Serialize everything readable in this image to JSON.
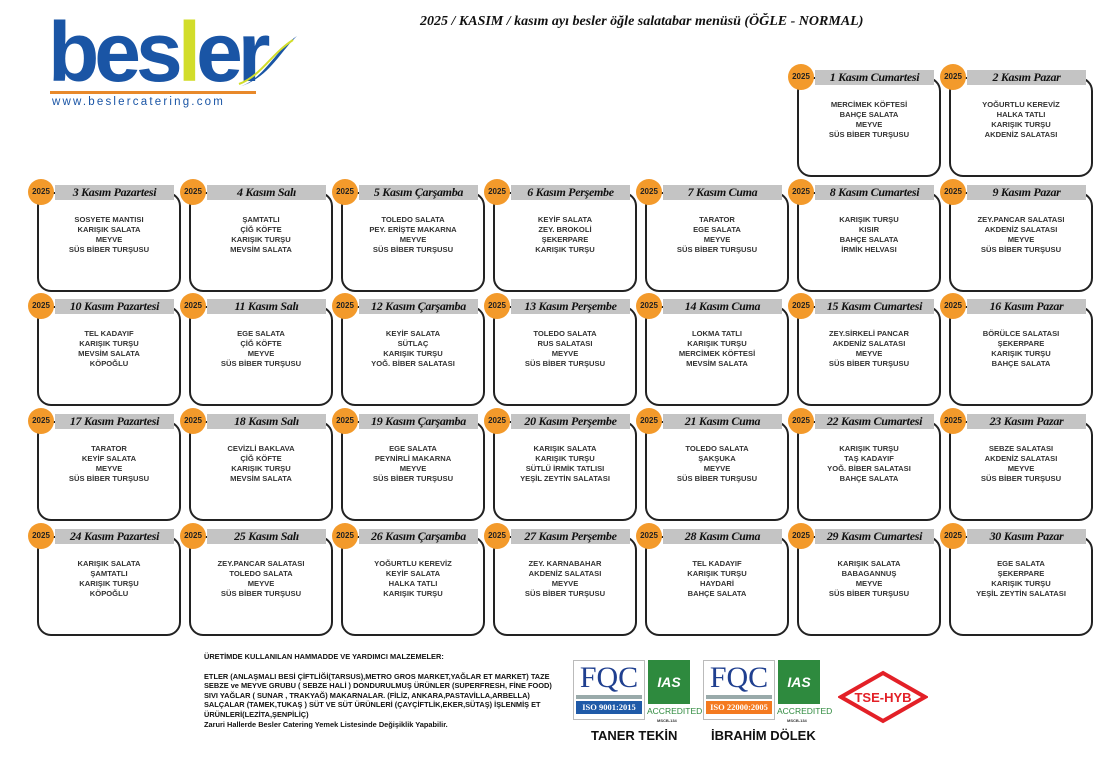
{
  "title": "2025 / KASIM / kasım ayı besler öğle salatabar menüsü (ÖĞLE - NORMAL)",
  "logo": {
    "word": "besler",
    "url": "www.beslercatering.com",
    "colors": {
      "blue": "#1a55a5",
      "lime": "#d2dd2a",
      "orange": "#e8892a"
    }
  },
  "year_badge": "2025",
  "colors": {
    "badge": "#f39a2b",
    "header_bar": "#c4c4c4"
  },
  "days": [
    {
      "title": "1 Kasım Cumartesi",
      "items": [
        "MERCİMEK KÖFTESİ",
        "BAHÇE SALATA",
        "MEYVE",
        "SÜS BİBER TURŞUSU"
      ]
    },
    {
      "title": "2 Kasım Pazar",
      "items": [
        "YOĞURTLU KEREVİZ",
        "HALKA TATLI",
        "KARIŞIK TURŞU",
        "AKDENİZ SALATASI"
      ]
    },
    {
      "title": "3 Kasım Pazartesi",
      "items": [
        "SOSYETE MANTISI",
        "KARIŞIK SALATA",
        "MEYVE",
        "SÜS BİBER TURŞUSU"
      ]
    },
    {
      "title": "4 Kasım Salı",
      "items": [
        "ŞAMTATLI",
        "ÇİĞ KÖFTE",
        "KARIŞIK TURŞU",
        "MEVSİM SALATA"
      ]
    },
    {
      "title": "5 Kasım Çarşamba",
      "items": [
        "TOLEDO SALATA",
        "PEY. ERİŞTE MAKARNA",
        "MEYVE",
        "SÜS BİBER TURŞUSU"
      ]
    },
    {
      "title": "6 Kasım Perşembe",
      "items": [
        "KEYİF SALATA",
        "ZEY. BROKOLİ",
        "ŞEKERPARE",
        "KARIŞIK TURŞU"
      ]
    },
    {
      "title": "7 Kasım Cuma",
      "items": [
        "TARATOR",
        "EGE SALATA",
        "MEYVE",
        "SÜS BİBER TURŞUSU"
      ]
    },
    {
      "title": "8 Kasım Cumartesi",
      "items": [
        "KARIŞIK TURŞU",
        "KISIR",
        "BAHÇE SALATA",
        "İRMİK HELVASI"
      ]
    },
    {
      "title": "9 Kasım Pazar",
      "items": [
        "ZEY.PANCAR SALATASI",
        "AKDENİZ SALATASI",
        "MEYVE",
        "SÜS BİBER TURŞUSU"
      ]
    },
    {
      "title": "10 Kasım Pazartesi",
      "items": [
        "TEL KADAYIF",
        "KARIŞIK TURŞU",
        "MEVSİM SALATA",
        "KÖPOĞLU"
      ]
    },
    {
      "title": "11 Kasım Salı",
      "items": [
        "EGE SALATA",
        "ÇİĞ KÖFTE",
        "MEYVE",
        "SÜS BİBER TURŞUSU"
      ]
    },
    {
      "title": "12 Kasım Çarşamba",
      "items": [
        "KEYİF SALATA",
        "SÜTLAÇ",
        "KARIŞIK TURŞU",
        "YOĞ. BİBER SALATASI"
      ]
    },
    {
      "title": "13 Kasım Perşembe",
      "items": [
        "TOLEDO SALATA",
        "RUS SALATASI",
        "MEYVE",
        "SÜS BİBER TURŞUSU"
      ]
    },
    {
      "title": "14 Kasım Cuma",
      "items": [
        "LOKMA TATLI",
        "KARIŞIK TURŞU",
        "MERCİMEK KÖFTESİ",
        "MEVSİM SALATA"
      ]
    },
    {
      "title": "15 Kasım Cumartesi",
      "items": [
        "ZEY.SİRKELİ PANCAR",
        "AKDENİZ SALATASI",
        "MEYVE",
        "SÜS BİBER TURŞUSU"
      ]
    },
    {
      "title": "16 Kasım Pazar",
      "items": [
        "BÖRÜLCE SALATASI",
        "ŞEKERPARE",
        "KARIŞIK TURŞU",
        "BAHÇE SALATA"
      ]
    },
    {
      "title": "17 Kasım Pazartesi",
      "items": [
        "TARATOR",
        "KEYİF SALATA",
        "MEYVE",
        "SÜS BİBER TURŞUSU"
      ]
    },
    {
      "title": "18 Kasım Salı",
      "items": [
        "CEVİZLİ BAKLAVA",
        "ÇİĞ KÖFTE",
        "KARIŞIK TURŞU",
        "MEVSİM SALATA"
      ]
    },
    {
      "title": "19 Kasım Çarşamba",
      "items": [
        "EGE SALATA",
        "PEYNİRLİ MAKARNA",
        "MEYVE",
        "SÜS BİBER TURŞUSU"
      ]
    },
    {
      "title": "20 Kasım Perşembe",
      "items": [
        "KARIŞIK SALATA",
        "KARIŞIK TURŞU",
        "SÜTLÜ İRMİK TATLISI",
        "YEŞİL ZEYTİN SALATASI"
      ]
    },
    {
      "title": "21 Kasım Cuma",
      "items": [
        "TOLEDO SALATA",
        "ŞAKŞUKA",
        "MEYVE",
        "SÜS BİBER TURŞUSU"
      ]
    },
    {
      "title": "22 Kasım Cumartesi",
      "items": [
        "KARIŞIK TURŞU",
        "TAŞ KADAYIF",
        "YOĞ. BİBER SALATASI",
        "BAHÇE SALATA"
      ]
    },
    {
      "title": "23 Kasım Pazar",
      "items": [
        "SEBZE SALATASI",
        "AKDENİZ SALATASI",
        "MEYVE",
        "SÜS BİBER TURŞUSU"
      ]
    },
    {
      "title": "24 Kasım Pazartesi",
      "items": [
        "KARIŞIK SALATA",
        "ŞAMTATLI",
        "KARIŞIK TURŞU",
        "KÖPOĞLU"
      ]
    },
    {
      "title": "25 Kasım Salı",
      "items": [
        "ZEY.PANCAR SALATASI",
        "TOLEDO SALATA",
        "MEYVE",
        "SÜS BİBER TURŞUSU"
      ]
    },
    {
      "title": "26 Kasım Çarşamba",
      "items": [
        "YOĞURTLU KEREVİZ",
        "KEYİF SALATA",
        "HALKA TATLI",
        "KARIŞIK TURŞU"
      ]
    },
    {
      "title": "27 Kasım Perşembe",
      "items": [
        "ZEY. KARNABAHAR",
        "AKDENİZ SALATASI",
        "MEYVE",
        "SÜS BİBER TURŞUSU"
      ]
    },
    {
      "title": "28 Kasım Cuma",
      "items": [
        "TEL KADAYIF",
        "KARIŞIK TURŞU",
        "HAYDARİ",
        "BAHÇE SALATA"
      ]
    },
    {
      "title": "29 Kasım Cumartesi",
      "items": [
        "KARIŞIK SALATA",
        "BABAGANNUŞ",
        "MEYVE",
        "SÜS BİBER TURŞUSU"
      ]
    },
    {
      "title": "30 Kasım Pazar",
      "items": [
        "EGE SALATA",
        "ŞEKERPARE",
        "KARIŞIK TURŞU",
        "YEŞİL ZEYTİN SALATASI"
      ]
    }
  ],
  "materials": {
    "heading": "ÜRETİMDE KULLANILAN HAMMADDE VE YARDIMCI MALZEMELER:",
    "body": "ETLER (ANLAŞMALI BESİ ÇİFTLİĞİ(TARSUS),METRO GROS MARKET,YAĞLAR ET MARKET)   TAZE SEBZE ve MEYVE GRUBU  ( SEBZE HALİ )      DONDURULMUŞ ÜRÜNLER (SUPERFRESH, FİNE FOOD)    SIVI YAĞLAR ( SUNAR , TRAKYAĞ)  MAKARNALAR. (FİLİZ, ANKARA,PASTAVİLLA,ARBELLA)    SALÇALAR  (TAMEK,TUKAŞ )  SÜT VE SÜT ÜRÜNLERİ (ÇAYÇİFTLİK,EKER,SÜTAŞ) İŞLENMİŞ ET ÜRÜNLERİ(LEZİTA,ŞENPİLİÇ)",
    "note": "Zaruri Hallerde Besler Catering Yemek Listesinde Değişiklik Yapabilir."
  },
  "certificates": [
    {
      "logo": "FQC",
      "standard": "ISO 9001:2015",
      "color": "#1f5aa8",
      "accredited": "ACCREDITED",
      "ias": "IAS",
      "code": "MSCB-134",
      "person": "TANER TEKİN"
    },
    {
      "logo": "FQC",
      "standard": "ISO 22000:2005",
      "color": "#f47a20",
      "accredited": "ACCREDITED",
      "ias": "IAS",
      "code": "MSCB-134",
      "person": "İBRAHİM DÖLEK"
    }
  ],
  "tse": {
    "label": "TSE-HYB",
    "color": "#e32027"
  }
}
